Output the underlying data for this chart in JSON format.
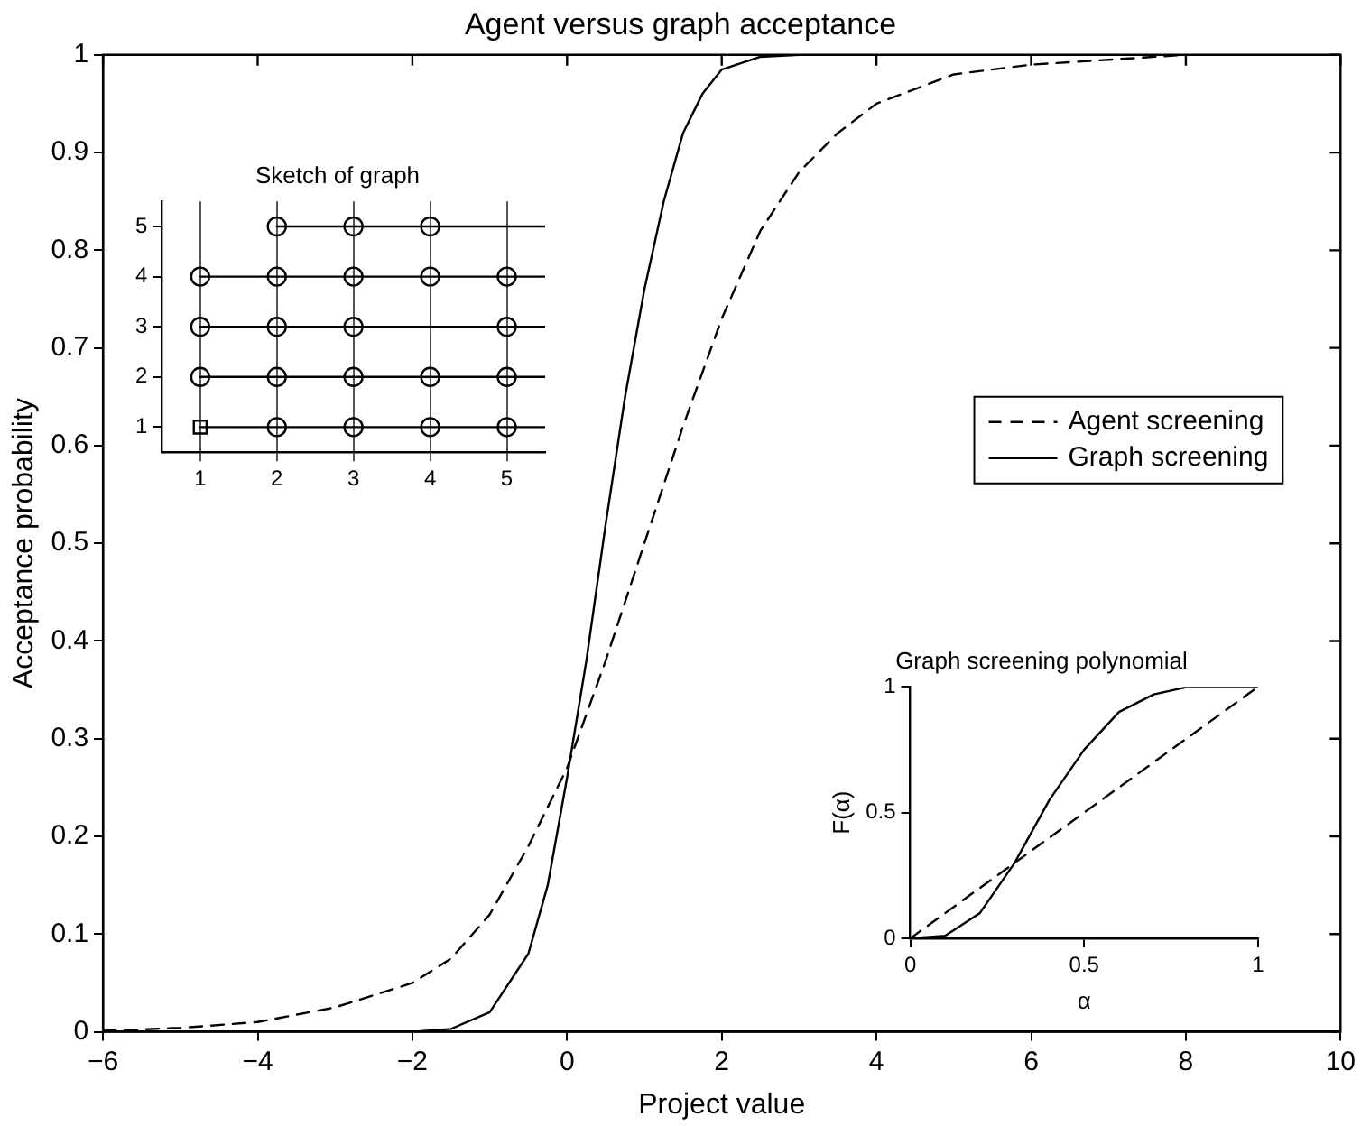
{
  "chart_data": [
    {
      "type": "line",
      "title": "Agent versus graph acceptance",
      "xlabel": "Project value",
      "ylabel": "Acceptance probability",
      "xlim": [
        -6,
        10
      ],
      "ylim": [
        0,
        1
      ],
      "xticks": [
        -6,
        -4,
        -2,
        0,
        2,
        4,
        6,
        8,
        10
      ],
      "yticks": [
        0,
        0.1,
        0.2,
        0.3,
        0.4,
        0.5,
        0.6,
        0.7,
        0.8,
        0.9,
        1
      ],
      "grid": false,
      "legend": "right",
      "marker": "none",
      "series": [
        {
          "name": "Agent screening",
          "color": "#000000",
          "line_style": "dashed",
          "x": [
            -6,
            -5,
            -4,
            -3,
            -2,
            -1.5,
            -1,
            -0.5,
            0,
            0.5,
            1,
            1.5,
            2,
            2.5,
            3,
            3.5,
            4,
            5,
            6,
            8,
            10
          ],
          "values": [
            0.001,
            0.004,
            0.01,
            0.025,
            0.05,
            0.075,
            0.12,
            0.19,
            0.27,
            0.38,
            0.5,
            0.62,
            0.73,
            0.82,
            0.88,
            0.92,
            0.95,
            0.98,
            0.99,
            1,
            1
          ]
        },
        {
          "name": "Graph screening",
          "color": "#000000",
          "line_style": "solid",
          "x": [
            -6,
            -2,
            -1.5,
            -1,
            -0.5,
            -0.25,
            0,
            0.25,
            0.5,
            0.75,
            1,
            1.25,
            1.5,
            1.75,
            2,
            2.5,
            3,
            10
          ],
          "values": [
            0,
            0,
            0.003,
            0.02,
            0.08,
            0.15,
            0.26,
            0.38,
            0.52,
            0.65,
            0.76,
            0.85,
            0.92,
            0.96,
            0.985,
            0.998,
            1,
            1
          ]
        }
      ]
    },
    {
      "type": "scatter",
      "title": "Sketch of graph",
      "xlim": [
        0.5,
        5.5
      ],
      "ylim": [
        0.5,
        5.5
      ],
      "xticks": [
        1,
        2,
        3,
        4,
        5
      ],
      "yticks": [
        1,
        2,
        3,
        4,
        5
      ],
      "grid": "x",
      "legend": false,
      "series": [
        {
          "type": "line",
          "color": "#000000",
          "marker": "none",
          "x": [
            1,
            5.5
          ],
          "values": [
            1,
            1
          ]
        },
        {
          "type": "line",
          "color": "#000000",
          "marker": "none",
          "x": [
            1,
            5.5
          ],
          "values": [
            2,
            2
          ]
        },
        {
          "type": "line",
          "color": "#000000",
          "marker": "none",
          "x": [
            1,
            5.5
          ],
          "values": [
            3,
            3
          ]
        },
        {
          "type": "line",
          "color": "#000000",
          "marker": "none",
          "x": [
            1,
            5.5
          ],
          "values": [
            4,
            4
          ]
        },
        {
          "type": "line",
          "color": "#000000",
          "marker": "none",
          "x": [
            2,
            5.5
          ],
          "values": [
            5,
            5
          ]
        },
        {
          "color": "#000000",
          "marker": "circle",
          "x": [
            2,
            3,
            4,
            5,
            1,
            2,
            3,
            4,
            5,
            1,
            2,
            3,
            5,
            1,
            2,
            3,
            4,
            5,
            2,
            3,
            4
          ],
          "values": [
            1,
            1,
            1,
            1,
            2,
            2,
            2,
            2,
            2,
            3,
            3,
            3,
            3,
            4,
            4,
            4,
            4,
            4,
            5,
            5,
            5
          ]
        },
        {
          "color": "#000000",
          "marker": "square",
          "x": [
            1
          ],
          "values": [
            1
          ]
        }
      ]
    },
    {
      "type": "line",
      "title": "Graph screening polynomial",
      "xlabel": "α",
      "ylabel": "F(α)",
      "xlim": [
        0,
        1
      ],
      "ylim": [
        0,
        1
      ],
      "xticks": [
        0,
        0.5,
        1
      ],
      "yticks": [
        0,
        0.5,
        1
      ],
      "grid": false,
      "legend": false,
      "marker": "none",
      "series": [
        {
          "color": "#000000",
          "line_style": "dashed",
          "x": [
            0,
            1
          ],
          "values": [
            0,
            1
          ]
        },
        {
          "color": "#000000",
          "line_style": "solid",
          "x": [
            0,
            0.1,
            0.2,
            0.3,
            0.4,
            0.5,
            0.6,
            0.7,
            0.8,
            1
          ],
          "values": [
            0,
            0.01,
            0.1,
            0.3,
            0.55,
            0.75,
            0.9,
            0.97,
            1,
            1
          ]
        }
      ]
    }
  ]
}
